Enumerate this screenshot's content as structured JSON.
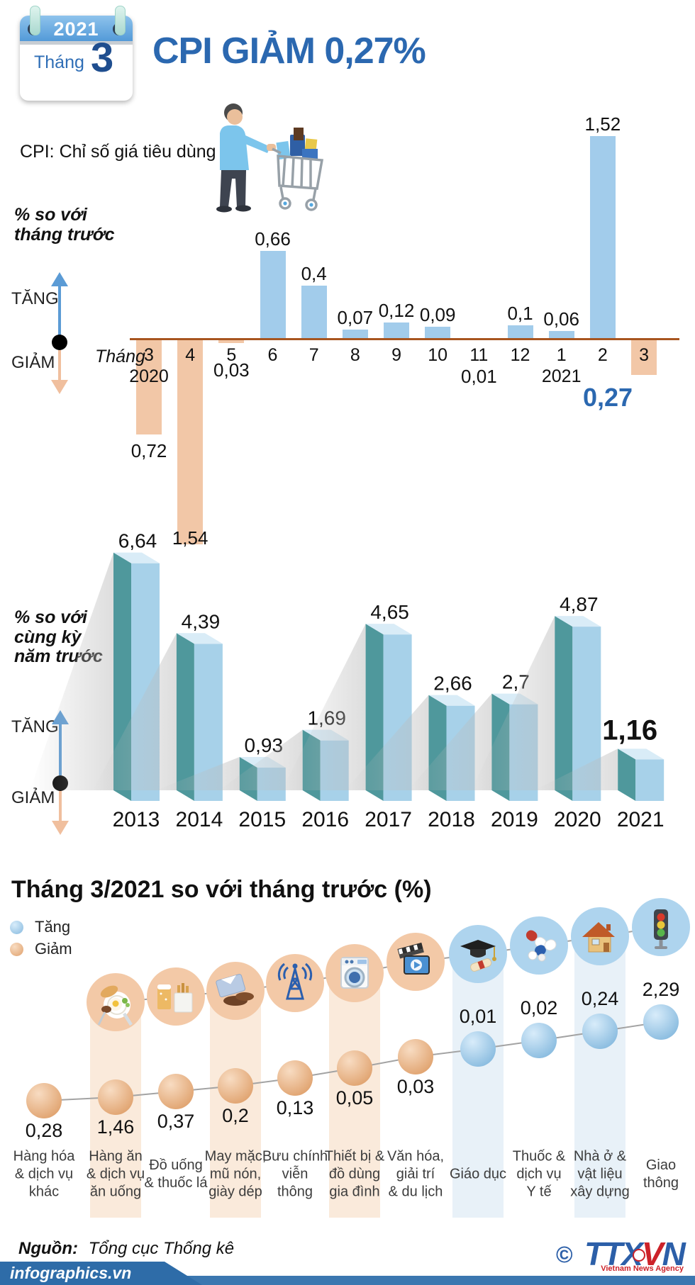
{
  "header": {
    "calendar": {
      "year": "2021",
      "month_word": "Tháng",
      "month_number": "3"
    },
    "title": "CPI GIẢM 0,27%",
    "subtitle": "CPI: Chỉ số giá tiêu dùng"
  },
  "axis_legend": {
    "up": "TĂNG",
    "down": "GIẢM"
  },
  "colors": {
    "accent_blue": "#2b68b0",
    "bar_up": "#a2cceb",
    "bar_down": "#f2c7a7",
    "axis_line": "#a8551f",
    "bar3d_front": "#a7d1e9",
    "bar3d_side": "#4f989c",
    "bar3d_top": "#d9ecf7",
    "ball_up_light": "#d8ecfa",
    "ball_up_dark": "#85b9de",
    "ball_down_light": "#f8dcc2",
    "ball_down_dark": "#dfa06b",
    "column_peach": "#faeadb",
    "column_blue": "#e8f1f8",
    "icon_circle_peach": "#f3c9a7",
    "icon_circle_blue": "#aed4ee",
    "banner_blue": "#2e6ca8",
    "strip_blue": "#3b77b0",
    "logo_blue": "#2c5fa8",
    "logo_red": "#cc2229"
  },
  "chart_data": [
    {
      "type": "bar",
      "title": "% so với\ntháng trước",
      "x_axis_prefix": "Tháng",
      "categories": [
        "3",
        "4",
        "5",
        "6",
        "7",
        "8",
        "9",
        "10",
        "11",
        "12",
        "1",
        "2",
        "3"
      ],
      "year_markers": {
        "0": "2020",
        "10": "2021"
      },
      "values": [
        -0.72,
        -1.54,
        -0.03,
        0.66,
        0.4,
        0.07,
        0.12,
        0.09,
        -0.01,
        0.1,
        0.06,
        1.52,
        -0.27
      ],
      "labels": [
        "0,72",
        "1,54",
        "0,03",
        "0,66",
        "0,4",
        "0,07",
        "0,12",
        "0,09",
        "0,01",
        "0,1",
        "0,06",
        "1,52",
        "0,27"
      ],
      "highlight_last_label": true,
      "legend_up": "TĂNG",
      "legend_down": "GIẢM",
      "grid": false
    },
    {
      "type": "bar3d",
      "title": "% so với\ncùng kỳ\nnăm trước",
      "categories": [
        "2013",
        "2014",
        "2015",
        "2016",
        "2017",
        "2018",
        "2019",
        "2020",
        "2021"
      ],
      "values": [
        6.64,
        4.39,
        0.93,
        1.69,
        4.65,
        2.66,
        2.7,
        4.87,
        1.16
      ],
      "labels": [
        "6,64",
        "4,39",
        "0,93",
        "1,69",
        "4,65",
        "2,66",
        "2,7",
        "4,87",
        "1,16"
      ],
      "big_last_label": true,
      "legend_up": "TĂNG",
      "legend_down": "GIẢM",
      "grid": false
    },
    {
      "type": "dot-line",
      "title": "Tháng 3/2021 so với tháng trước (%)",
      "legend": [
        {
          "label": "Tăng",
          "direction": "up"
        },
        {
          "label": "Giảm",
          "direction": "down"
        }
      ],
      "categories": [
        {
          "name": "Hàng hóa\n& dịch vụ\nkhác",
          "label": "0,28",
          "value": 0.28,
          "direction": "down",
          "icon": null,
          "highlight": null
        },
        {
          "name": "Hàng ăn\n& dịch vụ\năn uống",
          "label": "1,46",
          "value": 1.46,
          "direction": "down",
          "icon": "food-icon",
          "highlight": "peach"
        },
        {
          "name": "Đồ uống\n& thuốc lá",
          "label": "0,37",
          "value": 0.37,
          "direction": "down",
          "icon": "drinks-tobacco-icon",
          "highlight": null
        },
        {
          "name": "May mặc,\nmũ nón,\ngiày dép",
          "label": "0,2",
          "value": 0.2,
          "direction": "down",
          "icon": "clothing-icon",
          "highlight": "peach"
        },
        {
          "name": "Bưu chính\nviễn\nthông",
          "label": "0,13",
          "value": 0.13,
          "direction": "down",
          "icon": "telecom-icon",
          "highlight": null
        },
        {
          "name": "Thiết bị &\nđồ dùng\ngia đình",
          "label": "0,05",
          "value": 0.05,
          "direction": "down",
          "icon": "appliances-icon",
          "highlight": "peach"
        },
        {
          "name": "Văn hóa,\ngiải trí\n& du lịch",
          "label": "0,03",
          "value": 0.03,
          "direction": "down",
          "icon": "culture-icon",
          "highlight": null
        },
        {
          "name": "Giáo dục",
          "label": "0,01",
          "value": 0.01,
          "direction": "up",
          "icon": "education-icon",
          "highlight": "blue"
        },
        {
          "name": "Thuốc &\ndịch vụ\nY tế",
          "label": "0,02",
          "value": 0.02,
          "direction": "up",
          "icon": "medicine-icon",
          "highlight": null
        },
        {
          "name": "Nhà ở &\nvật liệu\nxây dựng",
          "label": "0,24",
          "value": 0.24,
          "direction": "up",
          "icon": "housing-icon",
          "highlight": "blue"
        },
        {
          "name": "Giao\nthông",
          "label": "2,29",
          "value": 2.29,
          "direction": "up",
          "icon": "transport-icon",
          "highlight": null
        }
      ]
    }
  ],
  "footer": {
    "source_label": "Nguồn:",
    "source": "Tổng cục Thống kê",
    "site": "infographics.vn",
    "logo": {
      "copyright": "©",
      "part1": "TTX",
      "part2": "V",
      "part3": "N",
      "caption": "Vietnam News Agency"
    }
  }
}
